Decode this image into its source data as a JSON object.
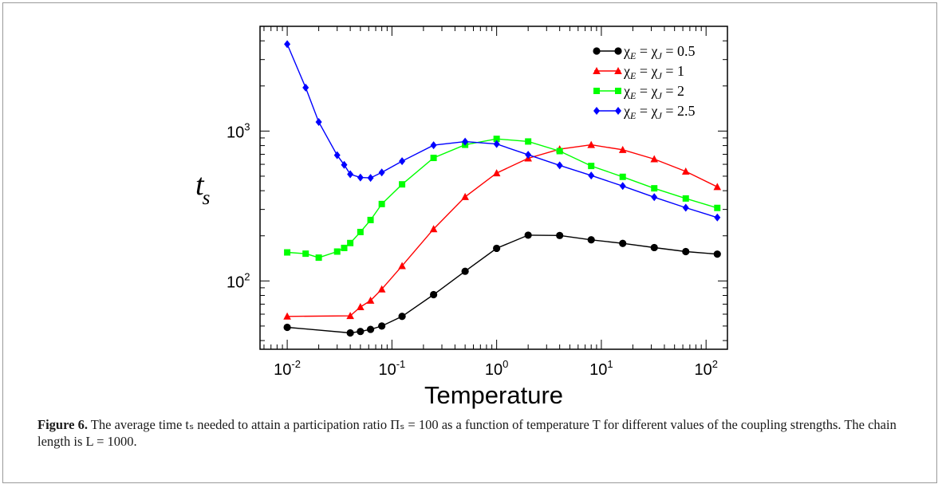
{
  "caption": {
    "label": "Figure 6.",
    "text": "The average time tₛ needed to attain a participation ratio Πₛ = 100 as a function of temperature T for different values of the coupling strengths. The chain length is L = 1000."
  },
  "chart_data": {
    "type": "line",
    "title": "",
    "xlabel": "Temperature",
    "ylabel": "t_s",
    "ylabel_main": "t",
    "ylabel_sub": "s",
    "x_scale": "log",
    "y_scale": "log",
    "xlim": [
      0.0055,
      160
    ],
    "ylim": [
      35,
      5000
    ],
    "grid": false,
    "legend_position": "top-right",
    "x_ticks": [
      {
        "base": "10",
        "exp": "-2",
        "value": 0.01
      },
      {
        "base": "10",
        "exp": "-1",
        "value": 0.1
      },
      {
        "base": "10",
        "exp": "0",
        "value": 1
      },
      {
        "base": "10",
        "exp": "1",
        "value": 10
      },
      {
        "base": "10",
        "exp": "2",
        "value": 100
      }
    ],
    "y_ticks": [
      {
        "base": "10",
        "exp": "2",
        "value": 100
      },
      {
        "base": "10",
        "exp": "3",
        "value": 1000
      }
    ],
    "series": [
      {
        "name": "χE = χJ = 0.5",
        "legend_parts": [
          "χ",
          "E",
          " = χ",
          "J",
          " = 0.5"
        ],
        "color": "#000000",
        "marker": "circle",
        "x": [
          0.01,
          0.04,
          0.05,
          0.0625,
          0.08,
          0.125,
          0.25,
          0.5,
          1,
          2,
          4,
          8,
          16,
          32,
          64,
          128
        ],
        "y": [
          49,
          45,
          46,
          47.5,
          50,
          58,
          81,
          116,
          165,
          202,
          201,
          188,
          178,
          167,
          157,
          151
        ]
      },
      {
        "name": "χE = χJ = 1",
        "legend_parts": [
          "χ",
          "E",
          " = χ",
          "J",
          "  = 1"
        ],
        "color": "#ff0000",
        "marker": "triangle",
        "x": [
          0.01,
          0.04,
          0.05,
          0.0625,
          0.08,
          0.125,
          0.25,
          0.5,
          1,
          2,
          4,
          8,
          16,
          32,
          64,
          128
        ],
        "y": [
          58,
          58.5,
          67,
          74,
          88,
          126,
          222,
          364,
          524,
          658,
          757,
          810,
          750,
          650,
          538,
          424
        ]
      },
      {
        "name": "χE = χJ = 2",
        "legend_parts": [
          "χ",
          "E",
          " = χ",
          "J",
          " = 2"
        ],
        "color": "#00ff00",
        "marker": "square",
        "x": [
          0.01,
          0.015,
          0.02,
          0.03,
          0.035,
          0.04,
          0.05,
          0.0625,
          0.08,
          0.125,
          0.25,
          0.5,
          1,
          2,
          4,
          8,
          16,
          32,
          64,
          128
        ],
        "y": [
          155,
          152,
          143,
          157,
          166,
          179,
          212,
          255,
          326,
          441,
          662,
          810,
          887,
          852,
          735,
          585,
          495,
          415,
          355,
          307
        ]
      },
      {
        "name": "χE = χJ = 2.5",
        "legend_parts": [
          "χ",
          "E",
          " = χ",
          "J",
          " = 2.5"
        ],
        "color": "#0000ff",
        "marker": "diamond",
        "x": [
          0.01,
          0.015,
          0.02,
          0.03,
          0.035,
          0.04,
          0.05,
          0.0625,
          0.08,
          0.125,
          0.25,
          0.5,
          1,
          2,
          4,
          8,
          16,
          32,
          64,
          128
        ],
        "y": [
          3800,
          1950,
          1150,
          690,
          595,
          515,
          490,
          487,
          530,
          630,
          805,
          850,
          820,
          695,
          590,
          505,
          430,
          362,
          308,
          265
        ]
      }
    ]
  }
}
